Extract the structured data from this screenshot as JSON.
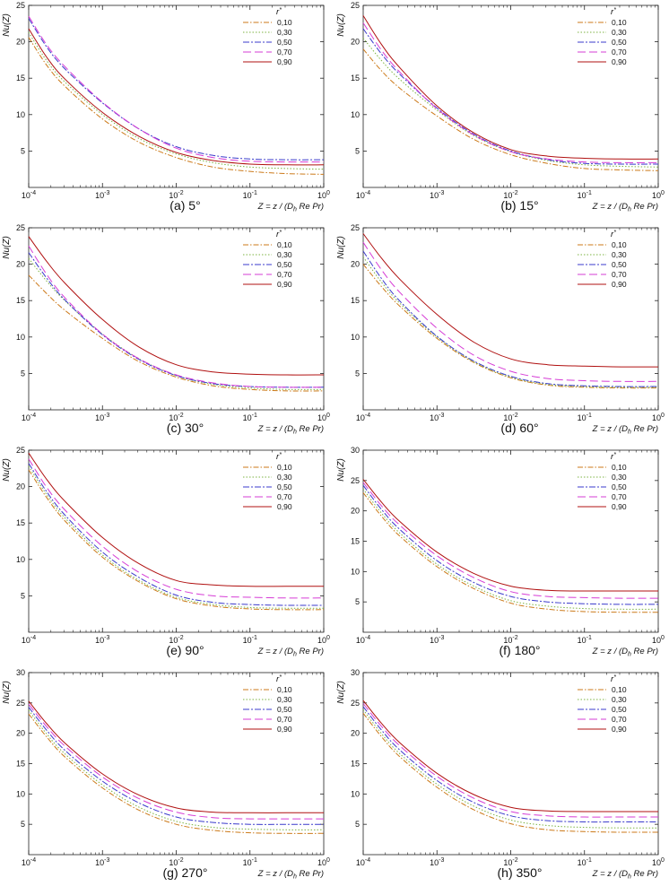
{
  "figure": {
    "panel_captions": [
      "(a) 5°",
      "(b) 15°",
      "(c) 30°",
      "(d) 60°",
      "(e) 90°",
      "(f) 180°",
      "(g) 270°",
      "(h) 350°"
    ],
    "series_colors": {
      "0,10": "#cc7a1a",
      "0,30": "#7cb342",
      "0,50": "#3b3bcc",
      "0,70": "#d63cd6",
      "0,90": "#b01010"
    },
    "series_dashes": {
      "0,10": "6,2,1.5,2",
      "0,30": "1.5,2",
      "0,50": "7,2,2,2",
      "0,70": "9,4",
      "0,90": "none"
    }
  },
  "chart_data": [
    {
      "type": "line",
      "panel": "(a) 5°",
      "ylabel": "Nu(Z)",
      "xlabel": "Z = z / (D_h Re Pr)",
      "xscale": "log",
      "xlim": [
        0.0001,
        1
      ],
      "ylim": [
        0,
        25
      ],
      "xticks": [
        "10-4",
        "10-3",
        "10-2",
        "10-1",
        "100"
      ],
      "yticks": [
        5,
        10,
        15,
        20,
        25
      ],
      "legend": {
        "title": "r*",
        "position": "top-right"
      },
      "x": [
        0.0001,
        0.000178,
        0.000316,
        0.001,
        0.00316,
        0.01,
        0.0316,
        0.1,
        0.316,
        1
      ],
      "series": [
        {
          "name": "0,10",
          "values": [
            20.6,
            16.7,
            13.8,
            9.4,
            6.2,
            4.1,
            2.8,
            2.2,
            1.9,
            1.8
          ]
        },
        {
          "name": "0,30",
          "values": [
            21.3,
            17.3,
            14.4,
            10.0,
            6.7,
            4.6,
            3.4,
            2.8,
            2.6,
            2.5
          ]
        },
        {
          "name": "0,50",
          "values": [
            23.2,
            19.2,
            16.2,
            11.6,
            8.0,
            5.6,
            4.4,
            3.9,
            3.8,
            3.8
          ]
        },
        {
          "name": "0,70",
          "values": [
            23.5,
            19.5,
            16.5,
            11.7,
            8.0,
            5.4,
            4.1,
            3.6,
            3.5,
            3.5
          ]
        },
        {
          "name": "0,90",
          "values": [
            21.8,
            17.8,
            14.8,
            10.3,
            7.0,
            4.8,
            3.7,
            3.2,
            3.1,
            3.1
          ]
        }
      ]
    },
    {
      "type": "line",
      "panel": "(b) 15°",
      "ylabel": "Nu(Z)",
      "xlabel": "Z = z / (D_h Re Pr)",
      "xscale": "log",
      "xlim": [
        0.0001,
        1
      ],
      "ylim": [
        0,
        25
      ],
      "xticks": [
        "10-4",
        "10-3",
        "10-2",
        "10-1",
        "100"
      ],
      "yticks": [
        5,
        10,
        15,
        20,
        25
      ],
      "legend": {
        "title": "r*",
        "position": "top-right"
      },
      "x": [
        0.0001,
        0.000178,
        0.000316,
        0.001,
        0.00316,
        0.01,
        0.0316,
        0.1,
        0.316,
        1
      ],
      "series": [
        {
          "name": "0,10",
          "values": [
            19.0,
            16.0,
            13.6,
            9.8,
            6.6,
            4.5,
            3.3,
            2.6,
            2.4,
            2.3
          ]
        },
        {
          "name": "0,30",
          "values": [
            20.5,
            17.4,
            14.8,
            10.6,
            7.1,
            4.9,
            3.7,
            3.1,
            2.9,
            2.8
          ]
        },
        {
          "name": "0,50",
          "values": [
            21.8,
            18.3,
            15.5,
            10.9,
            7.3,
            5.0,
            3.8,
            3.3,
            3.2,
            3.2
          ]
        },
        {
          "name": "0,70",
          "values": [
            22.6,
            18.8,
            15.8,
            10.8,
            7.2,
            4.9,
            3.9,
            3.5,
            3.4,
            3.4
          ]
        },
        {
          "name": "0,90",
          "values": [
            23.6,
            19.6,
            16.4,
            11.2,
            7.5,
            5.2,
            4.3,
            4.0,
            3.9,
            3.9
          ]
        }
      ]
    },
    {
      "type": "line",
      "panel": "(c) 30°",
      "ylabel": "Nu(Z)",
      "xlabel": "Z = z / (D_h Re Pr)",
      "xscale": "log",
      "xlim": [
        0.0001,
        1
      ],
      "ylim": [
        0,
        25
      ],
      "xticks": [
        "10-4",
        "10-3",
        "10-2",
        "10-1",
        "100"
      ],
      "yticks": [
        5,
        10,
        15,
        20,
        25
      ],
      "legend": {
        "title": "r*",
        "position": "top-right"
      },
      "x": [
        0.0001,
        0.000178,
        0.000316,
        0.001,
        0.00316,
        0.01,
        0.0316,
        0.1,
        0.316,
        1
      ],
      "series": [
        {
          "name": "0,10",
          "values": [
            18.5,
            15.9,
            13.6,
            9.8,
            6.6,
            4.5,
            3.3,
            2.8,
            2.6,
            2.6
          ]
        },
        {
          "name": "0,30",
          "values": [
            20.8,
            17.6,
            14.9,
            10.4,
            7.0,
            4.7,
            3.5,
            3.0,
            2.8,
            2.8
          ]
        },
        {
          "name": "0,50",
          "values": [
            21.6,
            18.0,
            15.0,
            10.3,
            6.9,
            4.7,
            3.6,
            3.2,
            3.1,
            3.1
          ]
        },
        {
          "name": "0,70",
          "values": [
            22.5,
            18.5,
            15.3,
            10.4,
            7.0,
            4.8,
            3.7,
            3.2,
            3.1,
            3.1
          ]
        },
        {
          "name": "0,90",
          "values": [
            23.8,
            20.3,
            17.3,
            12.4,
            8.6,
            6.2,
            5.2,
            4.9,
            4.8,
            4.8
          ]
        }
      ]
    },
    {
      "type": "line",
      "panel": "(d) 60°",
      "ylabel": "Nu(Z)",
      "xlabel": "Z = z / (D_h Re Pr)",
      "xscale": "log",
      "xlim": [
        0.0001,
        1
      ],
      "ylim": [
        0,
        25
      ],
      "xticks": [
        "10-4",
        "10-3",
        "10-2",
        "10-1",
        "100"
      ],
      "yticks": [
        5,
        10,
        15,
        20,
        25
      ],
      "legend": {
        "title": "r*",
        "position": "top-right"
      },
      "x": [
        0.0001,
        0.000178,
        0.000316,
        0.001,
        0.00316,
        0.01,
        0.0316,
        0.1,
        0.316,
        1
      ],
      "series": [
        {
          "name": "0,10",
          "values": [
            20.0,
            16.9,
            14.2,
            9.8,
            6.5,
            4.4,
            3.4,
            3.1,
            3.0,
            3.0
          ]
        },
        {
          "name": "0,30",
          "values": [
            21.0,
            17.5,
            14.6,
            10.0,
            6.6,
            4.5,
            3.5,
            3.2,
            3.1,
            3.1
          ]
        },
        {
          "name": "0,50",
          "values": [
            21.8,
            18.0,
            14.9,
            10.1,
            6.7,
            4.6,
            3.6,
            3.3,
            3.2,
            3.2
          ]
        },
        {
          "name": "0,70",
          "values": [
            23.0,
            19.2,
            16.1,
            11.2,
            7.5,
            5.3,
            4.3,
            4.0,
            3.9,
            3.9
          ]
        },
        {
          "name": "0,90",
          "values": [
            24.2,
            20.8,
            17.9,
            13.1,
            9.3,
            7.0,
            6.2,
            6.0,
            5.9,
            5.9
          ]
        }
      ]
    },
    {
      "type": "line",
      "panel": "(e) 90°",
      "ylabel": "Nu(Z)",
      "xlabel": "Z = z / (D_h Re Pr)",
      "xscale": "log",
      "xlim": [
        0.0001,
        1
      ],
      "ylim": [
        0,
        25
      ],
      "xticks": [
        "10-4",
        "10-3",
        "10-2",
        "10-1",
        "100"
      ],
      "yticks": [
        5,
        10,
        15,
        20,
        25
      ],
      "legend": {
        "title": "r*",
        "position": "top-right"
      },
      "x": [
        0.0001,
        0.000178,
        0.000316,
        0.001,
        0.00316,
        0.01,
        0.0316,
        0.1,
        0.316,
        1
      ],
      "series": [
        {
          "name": "0,10",
          "values": [
            22.3,
            18.4,
            15.2,
            10.3,
            6.9,
            4.6,
            3.6,
            3.2,
            3.1,
            3.1
          ]
        },
        {
          "name": "0,30",
          "values": [
            22.8,
            18.8,
            15.6,
            10.6,
            7.1,
            4.8,
            3.8,
            3.4,
            3.3,
            3.3
          ]
        },
        {
          "name": "0,50",
          "values": [
            23.2,
            19.2,
            16.0,
            11.0,
            7.5,
            5.1,
            4.1,
            3.8,
            3.7,
            3.7
          ]
        },
        {
          "name": "0,70",
          "values": [
            23.8,
            19.8,
            16.7,
            11.8,
            8.2,
            5.9,
            5.0,
            4.8,
            4.7,
            4.7
          ]
        },
        {
          "name": "0,90",
          "values": [
            24.6,
            20.9,
            17.9,
            13.0,
            9.4,
            7.1,
            6.5,
            6.3,
            6.3,
            6.3
          ]
        }
      ]
    },
    {
      "type": "line",
      "panel": "(f) 180°",
      "ylabel": "Nu(Z)",
      "xlabel": "Z = z / (D_h Re Pr)",
      "xscale": "log",
      "xlim": [
        0.0001,
        1
      ],
      "ylim": [
        0,
        30
      ],
      "xticks": [
        "10-4",
        "10-3",
        "10-2",
        "10-1",
        "100"
      ],
      "yticks": [
        5,
        10,
        15,
        20,
        25,
        30
      ],
      "legend": {
        "title": "r*",
        "position": "top-right"
      },
      "x": [
        0.0001,
        0.000178,
        0.000316,
        0.001,
        0.00316,
        0.01,
        0.0316,
        0.1,
        0.316,
        1
      ],
      "series": [
        {
          "name": "0,10",
          "values": [
            23.0,
            19.1,
            15.8,
            10.8,
            7.2,
            4.8,
            3.8,
            3.4,
            3.3,
            3.3
          ]
        },
        {
          "name": "0,30",
          "values": [
            23.6,
            19.6,
            16.3,
            11.2,
            7.6,
            5.2,
            4.3,
            3.9,
            3.8,
            3.8
          ]
        },
        {
          "name": "0,50",
          "values": [
            24.2,
            20.2,
            16.9,
            11.8,
            8.2,
            5.9,
            5.0,
            4.7,
            4.6,
            4.6
          ]
        },
        {
          "name": "0,70",
          "values": [
            24.7,
            20.8,
            17.6,
            12.6,
            9.0,
            6.7,
            5.9,
            5.7,
            5.6,
            5.6
          ]
        },
        {
          "name": "0,90",
          "values": [
            25.2,
            21.4,
            18.2,
            13.2,
            9.7,
            7.6,
            6.9,
            6.8,
            6.8,
            6.8
          ]
        }
      ]
    },
    {
      "type": "line",
      "panel": "(g) 270°",
      "ylabel": "Nu(Z)",
      "xlabel": "Z = z / (D_h Re Pr)",
      "xscale": "log",
      "xlim": [
        0.0001,
        1
      ],
      "ylim": [
        0,
        30
      ],
      "xticks": [
        "10-4",
        "10-3",
        "10-2",
        "10-1",
        "100"
      ],
      "yticks": [
        5,
        10,
        15,
        20,
        25,
        30
      ],
      "legend": {
        "title": "r*",
        "position": "top-right"
      },
      "x": [
        0.0001,
        0.000178,
        0.000316,
        0.001,
        0.00316,
        0.01,
        0.0316,
        0.1,
        0.316,
        1
      ],
      "series": [
        {
          "name": "0,10",
          "values": [
            23.2,
            19.3,
            16.0,
            11.0,
            7.3,
            5.0,
            4.0,
            3.6,
            3.5,
            3.5
          ]
        },
        {
          "name": "0,30",
          "values": [
            23.8,
            19.8,
            16.5,
            11.5,
            7.8,
            5.5,
            4.5,
            4.2,
            4.1,
            4.1
          ]
        },
        {
          "name": "0,50",
          "values": [
            24.3,
            20.4,
            17.1,
            12.1,
            8.5,
            6.2,
            5.3,
            5.0,
            5.0,
            5.0
          ]
        },
        {
          "name": "0,70",
          "values": [
            24.8,
            21.0,
            17.8,
            12.8,
            9.2,
            7.0,
            6.1,
            5.9,
            5.9,
            5.9
          ]
        },
        {
          "name": "0,90",
          "values": [
            25.3,
            21.5,
            18.3,
            13.3,
            9.8,
            7.7,
            7.0,
            6.9,
            6.9,
            6.9
          ]
        }
      ]
    },
    {
      "type": "line",
      "panel": "(h) 350°",
      "ylabel": "Nu(Z)",
      "xlabel": "Z = z / (D_h Re Pr)",
      "xscale": "log",
      "xlim": [
        0.0001,
        1
      ],
      "ylim": [
        0,
        30
      ],
      "xticks": [
        "10-4",
        "10-3",
        "10-2",
        "10-1",
        "100"
      ],
      "yticks": [
        5,
        10,
        15,
        20,
        25,
        30
      ],
      "legend": {
        "title": "r*",
        "position": "top-right"
      },
      "x": [
        0.0001,
        0.000178,
        0.000316,
        0.001,
        0.00316,
        0.01,
        0.0316,
        0.1,
        0.316,
        1
      ],
      "series": [
        {
          "name": "0,10",
          "values": [
            23.3,
            19.4,
            16.1,
            11.1,
            7.4,
            5.1,
            4.1,
            3.8,
            3.7,
            3.7
          ]
        },
        {
          "name": "0,30",
          "values": [
            23.9,
            19.9,
            16.6,
            11.6,
            8.0,
            5.7,
            4.8,
            4.5,
            4.4,
            4.4
          ]
        },
        {
          "name": "0,50",
          "values": [
            24.4,
            20.5,
            17.2,
            12.2,
            8.6,
            6.4,
            5.6,
            5.4,
            5.4,
            5.4
          ]
        },
        {
          "name": "0,70",
          "values": [
            24.9,
            21.1,
            17.9,
            12.9,
            9.3,
            7.1,
            6.4,
            6.2,
            6.2,
            6.2
          ]
        },
        {
          "name": "0,90",
          "values": [
            25.4,
            21.6,
            18.4,
            13.4,
            9.9,
            7.8,
            7.2,
            7.1,
            7.1,
            7.1
          ]
        }
      ]
    }
  ]
}
